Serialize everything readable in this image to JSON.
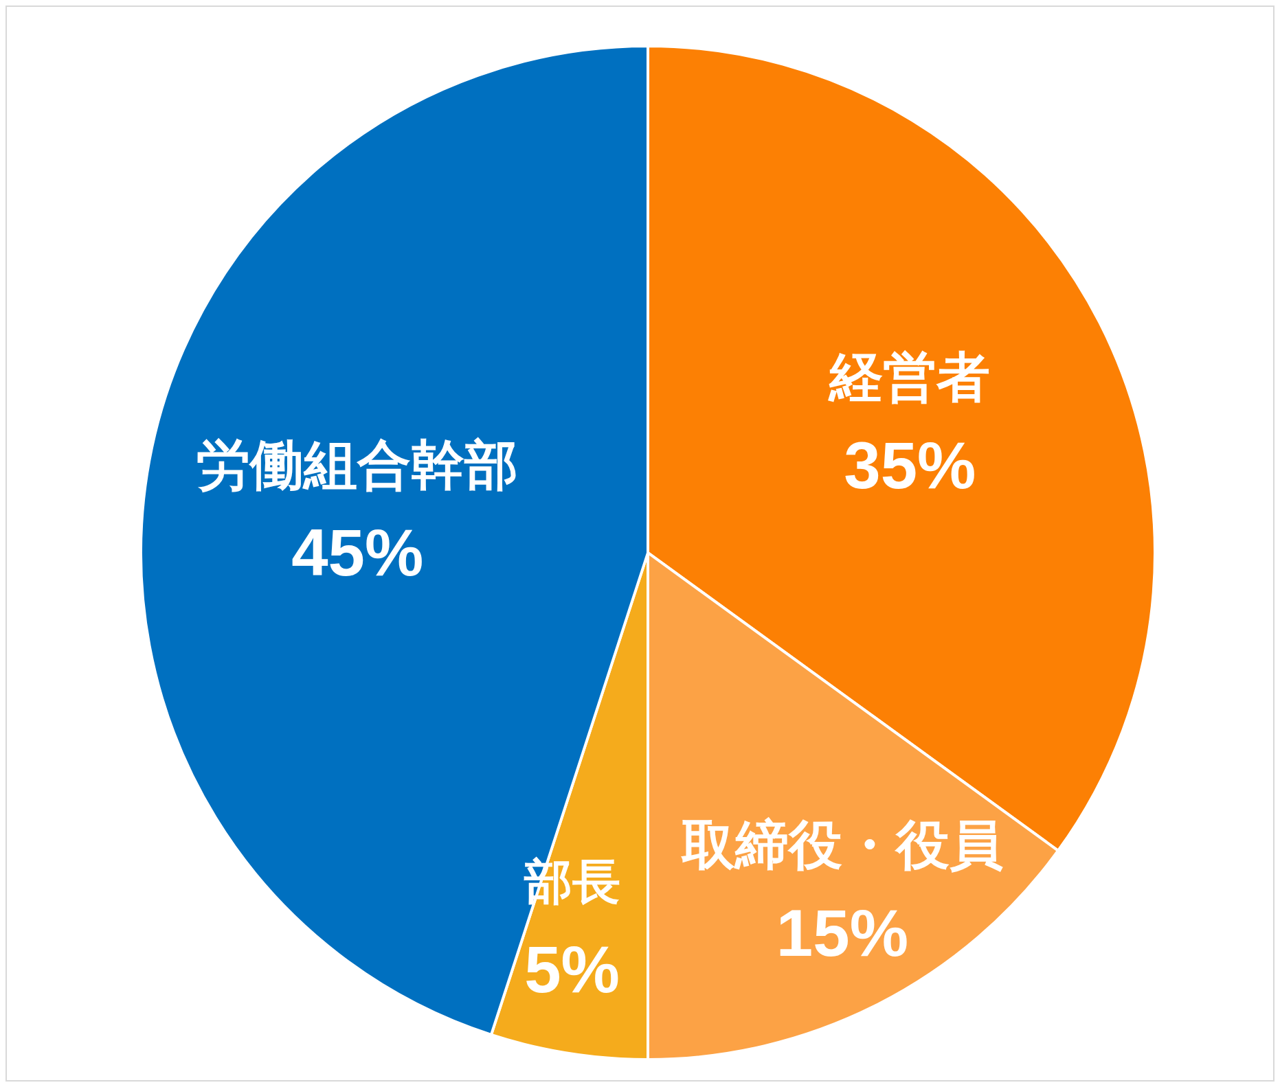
{
  "chart_data": {
    "type": "pie",
    "categories": [
      "経営者",
      "取締役・役員",
      "部長",
      "労働組合幹部"
    ],
    "values": [
      35,
      15,
      5,
      45
    ],
    "colors": [
      "#fc8004",
      "#fca245",
      "#f5ab1c",
      "#0070c0"
    ],
    "value_labels": [
      "35%",
      "15%",
      "5%",
      "45%"
    ]
  }
}
